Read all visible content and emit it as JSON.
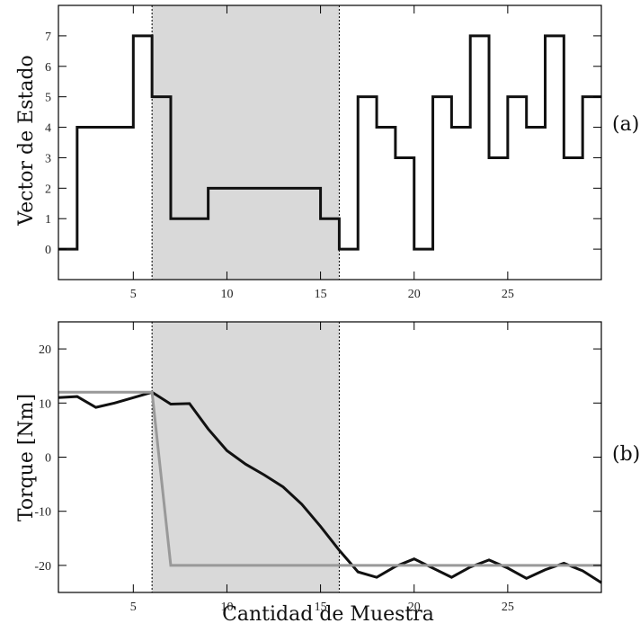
{
  "chart_data": [
    {
      "type": "line",
      "panel_label": "(a)",
      "ylabel": "Vector de Estado",
      "xlim": [
        1,
        30
      ],
      "ylim": [
        -1,
        8
      ],
      "xticks": [
        5,
        10,
        15,
        20,
        25
      ],
      "yticks": [
        0,
        1,
        2,
        3,
        4,
        5,
        6,
        7
      ],
      "shaded_region": [
        6,
        16
      ],
      "series": [
        {
          "color": "#111111",
          "step": true,
          "x": [
            1,
            2,
            3,
            4,
            5,
            6,
            7,
            8,
            9,
            10,
            11,
            12,
            13,
            14,
            15,
            16,
            17,
            18,
            19,
            20,
            21,
            22,
            23,
            24,
            25,
            26,
            27,
            28,
            29,
            30
          ],
          "y": [
            0,
            4,
            4,
            4,
            7,
            5,
            1,
            1,
            2,
            2,
            2,
            2,
            2,
            2,
            1,
            0,
            5,
            4,
            3,
            0,
            5,
            4,
            7,
            3,
            5,
            4,
            7,
            3,
            5,
            5
          ]
        }
      ]
    },
    {
      "type": "line",
      "panel_label": "(b)",
      "ylabel": "Torque [Nm]",
      "xlabel": "Cantidad de Muestra",
      "xlim": [
        1,
        30
      ],
      "ylim": [
        -25,
        25
      ],
      "xticks": [
        5,
        10,
        15,
        20,
        25
      ],
      "yticks": [
        20,
        10,
        0,
        -10,
        -20
      ],
      "shaded_region": [
        6,
        16
      ],
      "series": [
        {
          "color": "#111111",
          "x": [
            1,
            2,
            3,
            4,
            5,
            6,
            7,
            8,
            9,
            10,
            11,
            12,
            13,
            14,
            15,
            16,
            17,
            18,
            19,
            20,
            21,
            22,
            23,
            24,
            25,
            26,
            27,
            28,
            29,
            30
          ],
          "y": [
            11,
            11.2,
            9.2,
            10,
            11,
            12,
            9.8,
            9.9,
            5.2,
            1.2,
            -1.3,
            -3.3,
            -5.5,
            -8.7,
            -12.8,
            -17.2,
            -21.2,
            -22.2,
            -20.2,
            -18.8,
            -20.5,
            -22.2,
            -20.3,
            -19,
            -20.5,
            -22.4,
            -20.8,
            -19.6,
            -21,
            -23.2
          ]
        },
        {
          "color": "#999999",
          "x": [
            1,
            6,
            7,
            30
          ],
          "y": [
            12,
            12,
            -20,
            -20
          ]
        }
      ]
    }
  ]
}
